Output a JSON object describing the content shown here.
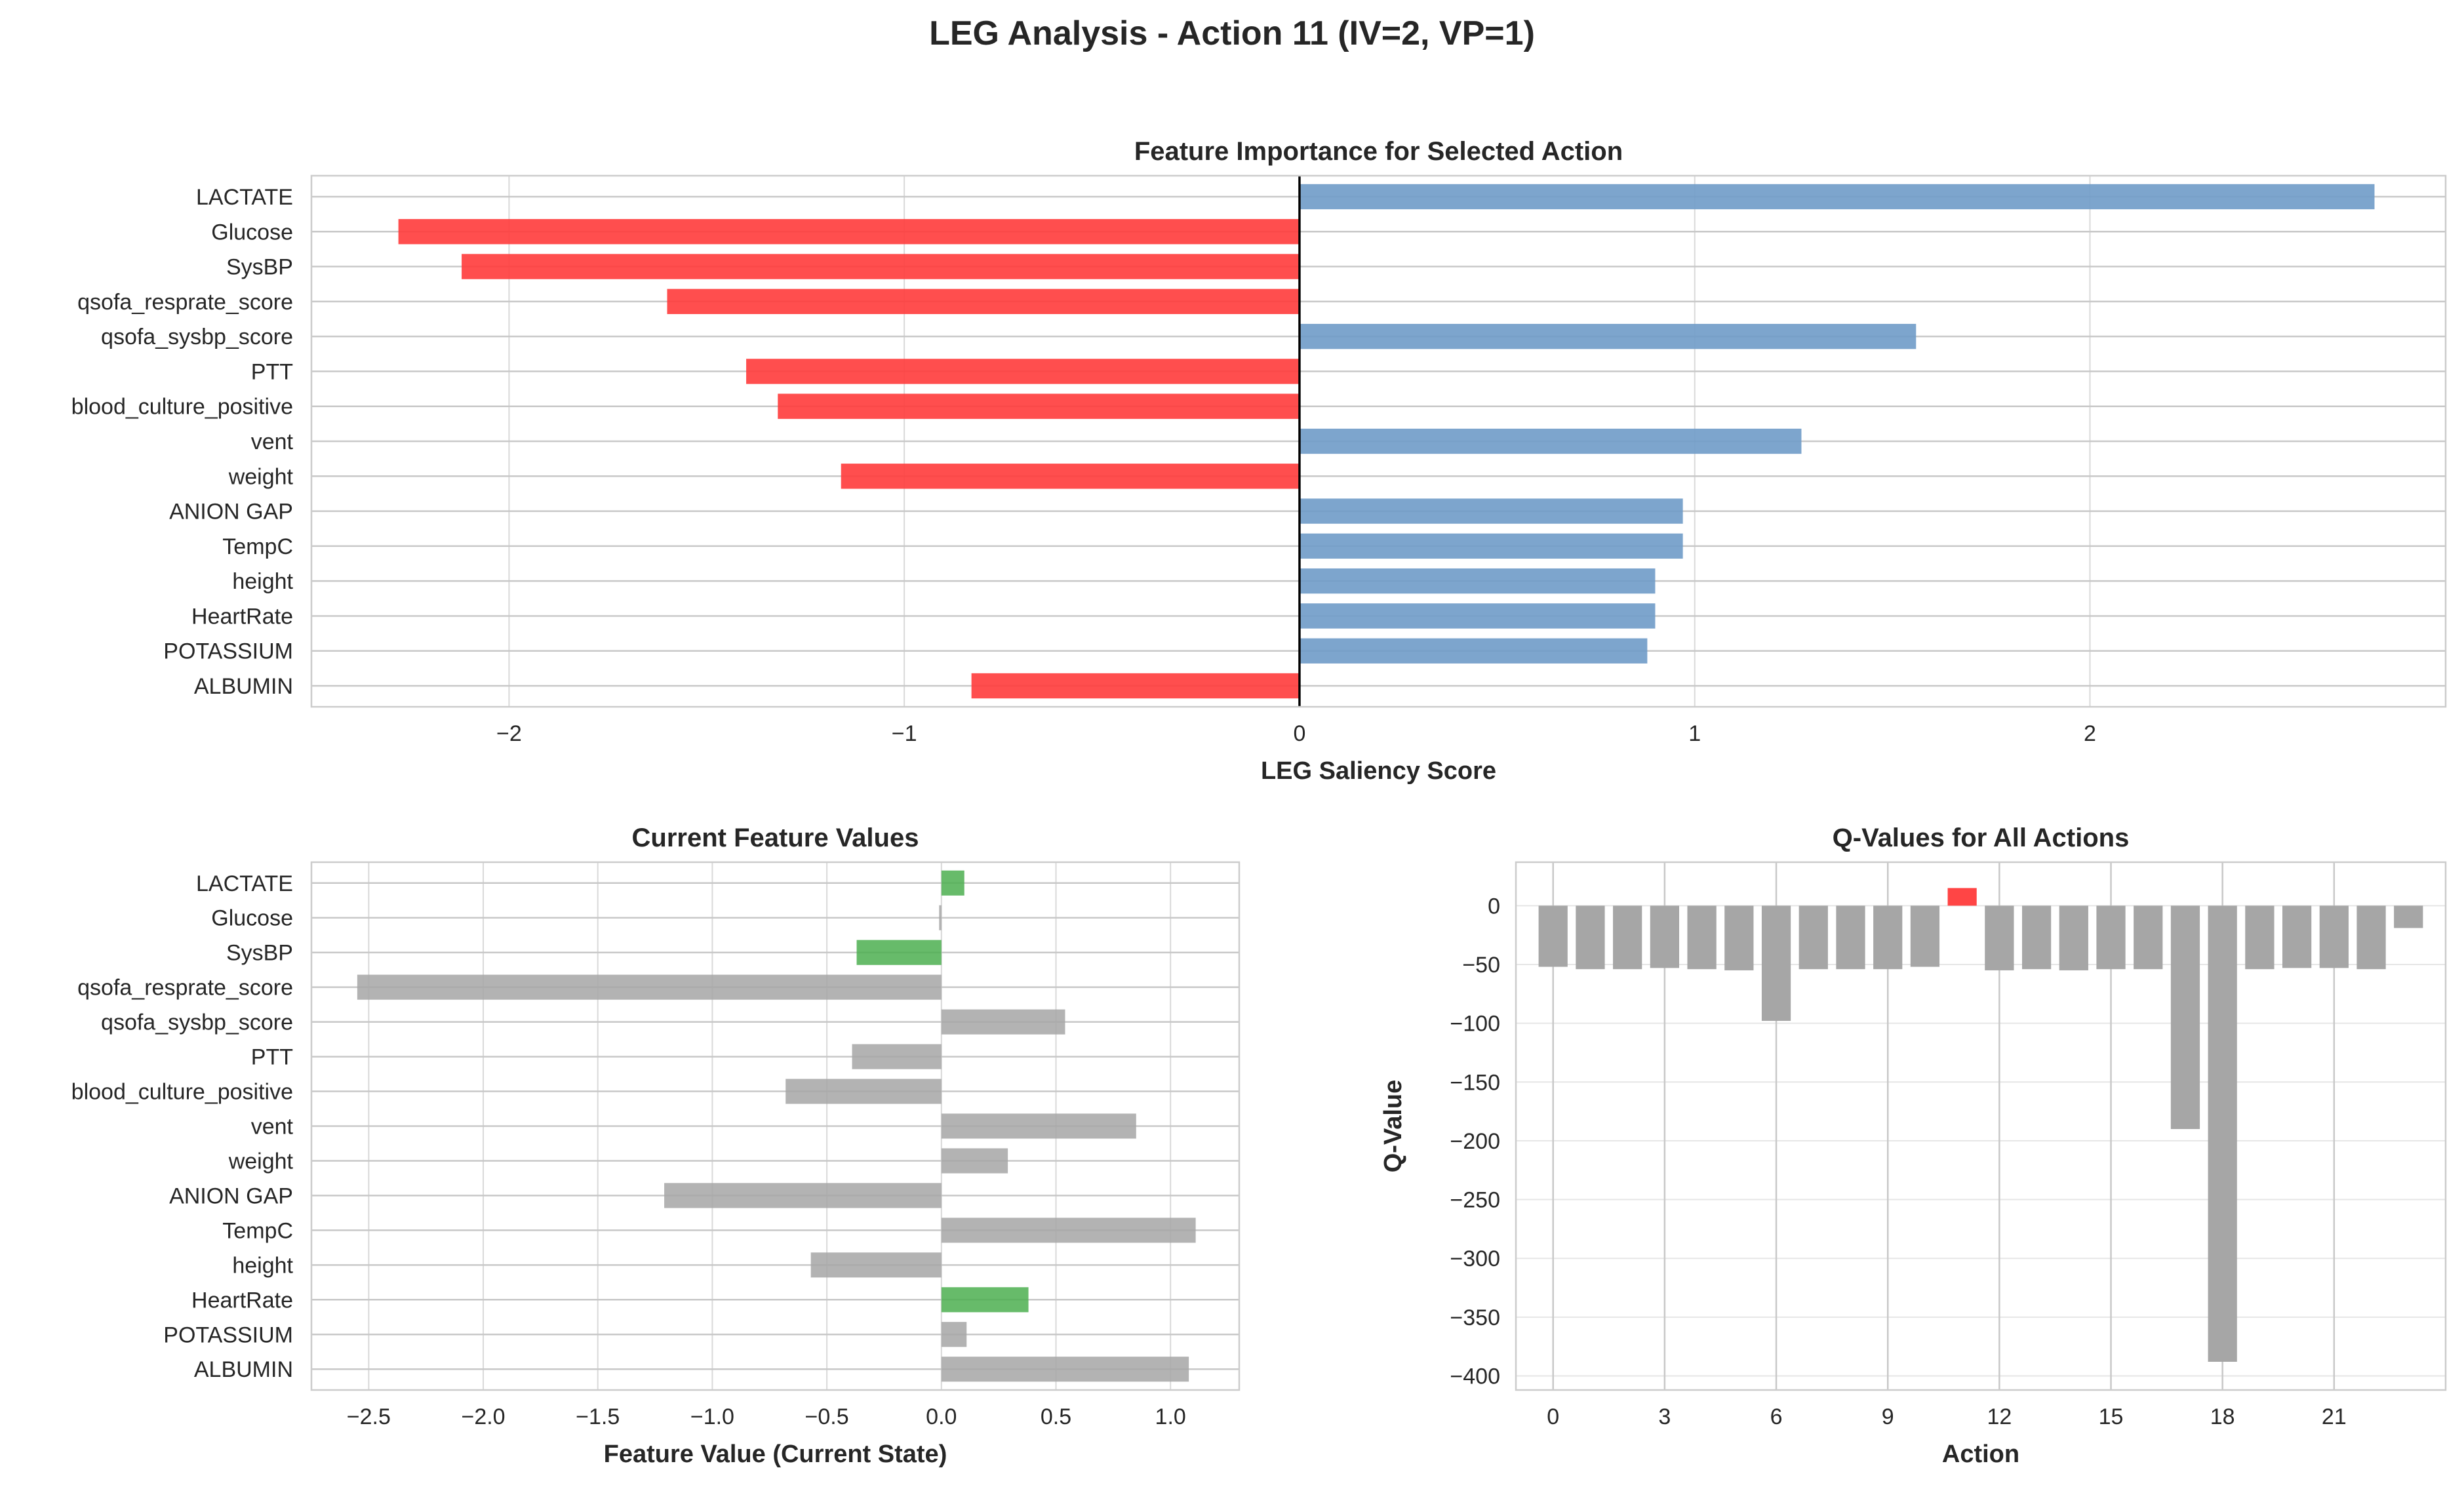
{
  "suptitle": "LEG Analysis - Action 11 (IV=2, VP=1)",
  "colors": {
    "positive": "#6f9bc8",
    "negative": "#ff3b3b",
    "neutral": "#a6a6a6",
    "highlight": "#4caf50",
    "grid": "#d9d9d9",
    "spine": "#cccccc"
  },
  "chart_data": [
    {
      "type": "bar",
      "orientation": "horizontal",
      "title": "Feature Importance for Selected Action",
      "xlabel": "LEG Saliency Score",
      "ylabel": "",
      "categories": [
        "LACTATE",
        "Glucose",
        "SysBP",
        "qsofa_resprate_score",
        "qsofa_sysbp_score",
        "PTT",
        "blood_culture_positive",
        "vent",
        "weight",
        "ANION GAP",
        "TempC",
        "height",
        "HeartRate",
        "POTASSIUM",
        "ALBUMIN"
      ],
      "values": [
        2.72,
        -2.28,
        -2.12,
        -1.6,
        1.56,
        -1.4,
        -1.32,
        1.27,
        -1.16,
        0.97,
        0.97,
        0.9,
        0.9,
        0.88,
        -0.83
      ],
      "xlim": [
        -2.5,
        2.9
      ],
      "xticks": [
        -2,
        -1,
        0,
        1,
        2
      ],
      "xtick_labels": [
        "−2",
        "−1",
        "0",
        "1",
        "2"
      ],
      "zero_line": true,
      "bar_colors": "blue if positive, red if negative",
      "grid": true
    },
    {
      "type": "bar",
      "orientation": "horizontal",
      "title": "Current Feature Values",
      "xlabel": "Feature Value (Current State)",
      "ylabel": "",
      "categories": [
        "LACTATE",
        "Glucose",
        "SysBP",
        "qsofa_resprate_score",
        "qsofa_sysbp_score",
        "PTT",
        "blood_culture_positive",
        "vent",
        "weight",
        "ANION GAP",
        "TempC",
        "height",
        "HeartRate",
        "POTASSIUM",
        "ALBUMIN"
      ],
      "values": [
        0.1,
        -0.01,
        -0.37,
        -2.55,
        0.54,
        -0.39,
        -0.68,
        0.85,
        0.29,
        -1.21,
        1.11,
        -0.57,
        0.38,
        0.11,
        1.08
      ],
      "highlighted": [
        "LACTATE",
        "SysBP",
        "HeartRate"
      ],
      "xlim": [
        -2.75,
        1.3
      ],
      "xticks": [
        -2.5,
        -2.0,
        -1.5,
        -1.0,
        -0.5,
        0.0,
        0.5,
        1.0
      ],
      "xtick_labels": [
        "−2.5",
        "−2.0",
        "−1.5",
        "−1.0",
        "−0.5",
        "0.0",
        "0.5",
        "1.0"
      ],
      "grid": true
    },
    {
      "type": "bar",
      "orientation": "vertical",
      "title": "Q-Values for All Actions",
      "xlabel": "Action",
      "ylabel": "Q-Value",
      "x": [
        0,
        1,
        2,
        3,
        4,
        5,
        6,
        7,
        8,
        9,
        10,
        11,
        12,
        13,
        14,
        15,
        16,
        17,
        18,
        19,
        20,
        21,
        22,
        23
      ],
      "values": [
        -52,
        -54,
        -54,
        -53,
        -54,
        -55,
        -98,
        -54,
        -54,
        -54,
        -52,
        15,
        -55,
        -54,
        -55,
        -54,
        -54,
        -190,
        -388,
        -54,
        -53,
        -53,
        -54,
        -19
      ],
      "selected_action": 11,
      "xlim": [
        -1,
        24
      ],
      "ylim": [
        -412,
        37
      ],
      "xticks": [
        0,
        3,
        6,
        9,
        12,
        15,
        18,
        21
      ],
      "yticks": [
        0,
        -50,
        -100,
        -150,
        -200,
        -250,
        -300,
        -350,
        -400
      ],
      "ytick_labels": [
        "0",
        "−50",
        "−100",
        "−150",
        "−200",
        "−250",
        "−300",
        "−350",
        "−400"
      ],
      "grid": true
    }
  ]
}
